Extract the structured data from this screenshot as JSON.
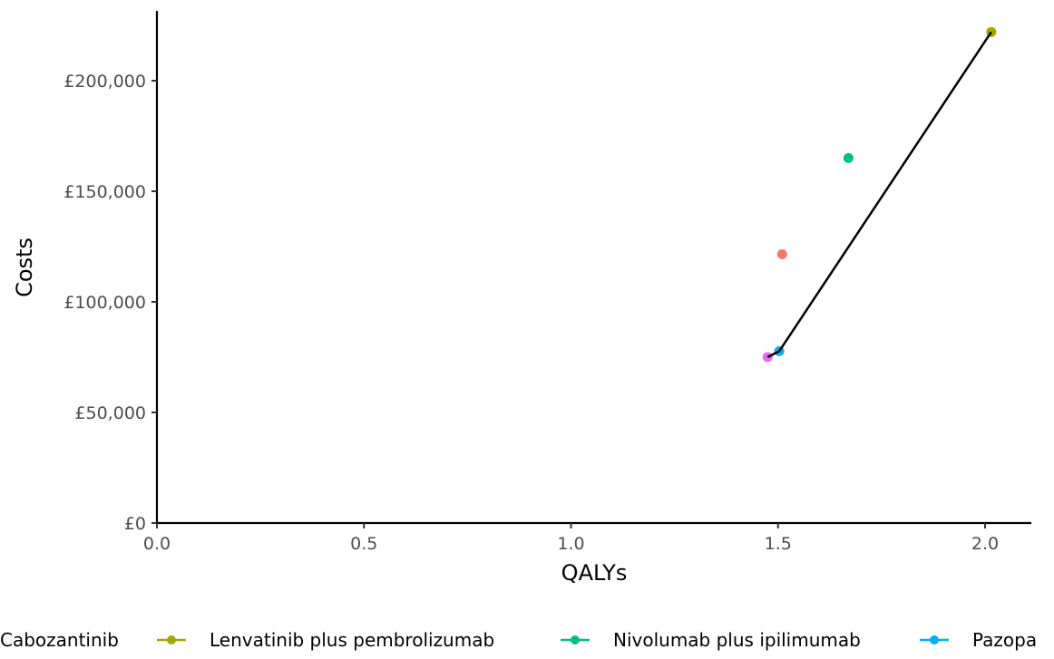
{
  "chart_data": {
    "type": "scatter",
    "xlabel": "QALYs",
    "ylabel": "Costs",
    "xlim": [
      0,
      2.11
    ],
    "ylim": [
      0,
      232000
    ],
    "x_ticks": [
      {
        "value": 0.0,
        "label": "0.0"
      },
      {
        "value": 0.5,
        "label": "0.5"
      },
      {
        "value": 1.0,
        "label": "1.0"
      },
      {
        "value": 1.5,
        "label": "1.5"
      },
      {
        "value": 2.0,
        "label": "2.0"
      }
    ],
    "y_ticks": [
      {
        "value": 0,
        "label": "£0"
      },
      {
        "value": 50000,
        "label": "£50,000"
      },
      {
        "value": 100000,
        "label": "£100,000"
      },
      {
        "value": 150000,
        "label": "£150,000"
      },
      {
        "value": 200000,
        "label": "£200,000"
      }
    ],
    "grid": false,
    "legend_position": "bottom",
    "series": [
      {
        "name": "Cabozantinib",
        "color": "#F8766D",
        "points": [
          {
            "x": 1.51,
            "y": 121500
          }
        ]
      },
      {
        "name": "Lenvatinib plus pembrolizumab",
        "color": "#A3A500",
        "points": [
          {
            "x": 2.015,
            "y": 222000
          }
        ]
      },
      {
        "name": "Nivolumab plus ipilimumab",
        "color": "#00BF7D",
        "points": [
          {
            "x": 1.67,
            "y": 165000
          }
        ]
      },
      {
        "name": "Pazopa",
        "color": "#00B0F6",
        "points": [
          {
            "x": 1.503,
            "y": 77700
          }
        ]
      },
      {
        "name": "",
        "color": "#E76BF3",
        "points": [
          {
            "x": 1.475,
            "y": 75000
          }
        ]
      }
    ],
    "frontier": {
      "color": "#000000",
      "points": [
        {
          "x": 1.475,
          "y": 75000
        },
        {
          "x": 1.503,
          "y": 77700
        },
        {
          "x": 2.015,
          "y": 222000
        }
      ]
    },
    "legend_entries": [
      {
        "label": "Cabozantinib",
        "color": "#F8766D"
      },
      {
        "label": "Lenvatinib plus pembrolizumab",
        "color": "#A3A500"
      },
      {
        "label": "Nivolumab plus ipilimumab",
        "color": "#00BF7D"
      },
      {
        "label": "Pazopa",
        "color": "#00B0F6"
      }
    ]
  }
}
